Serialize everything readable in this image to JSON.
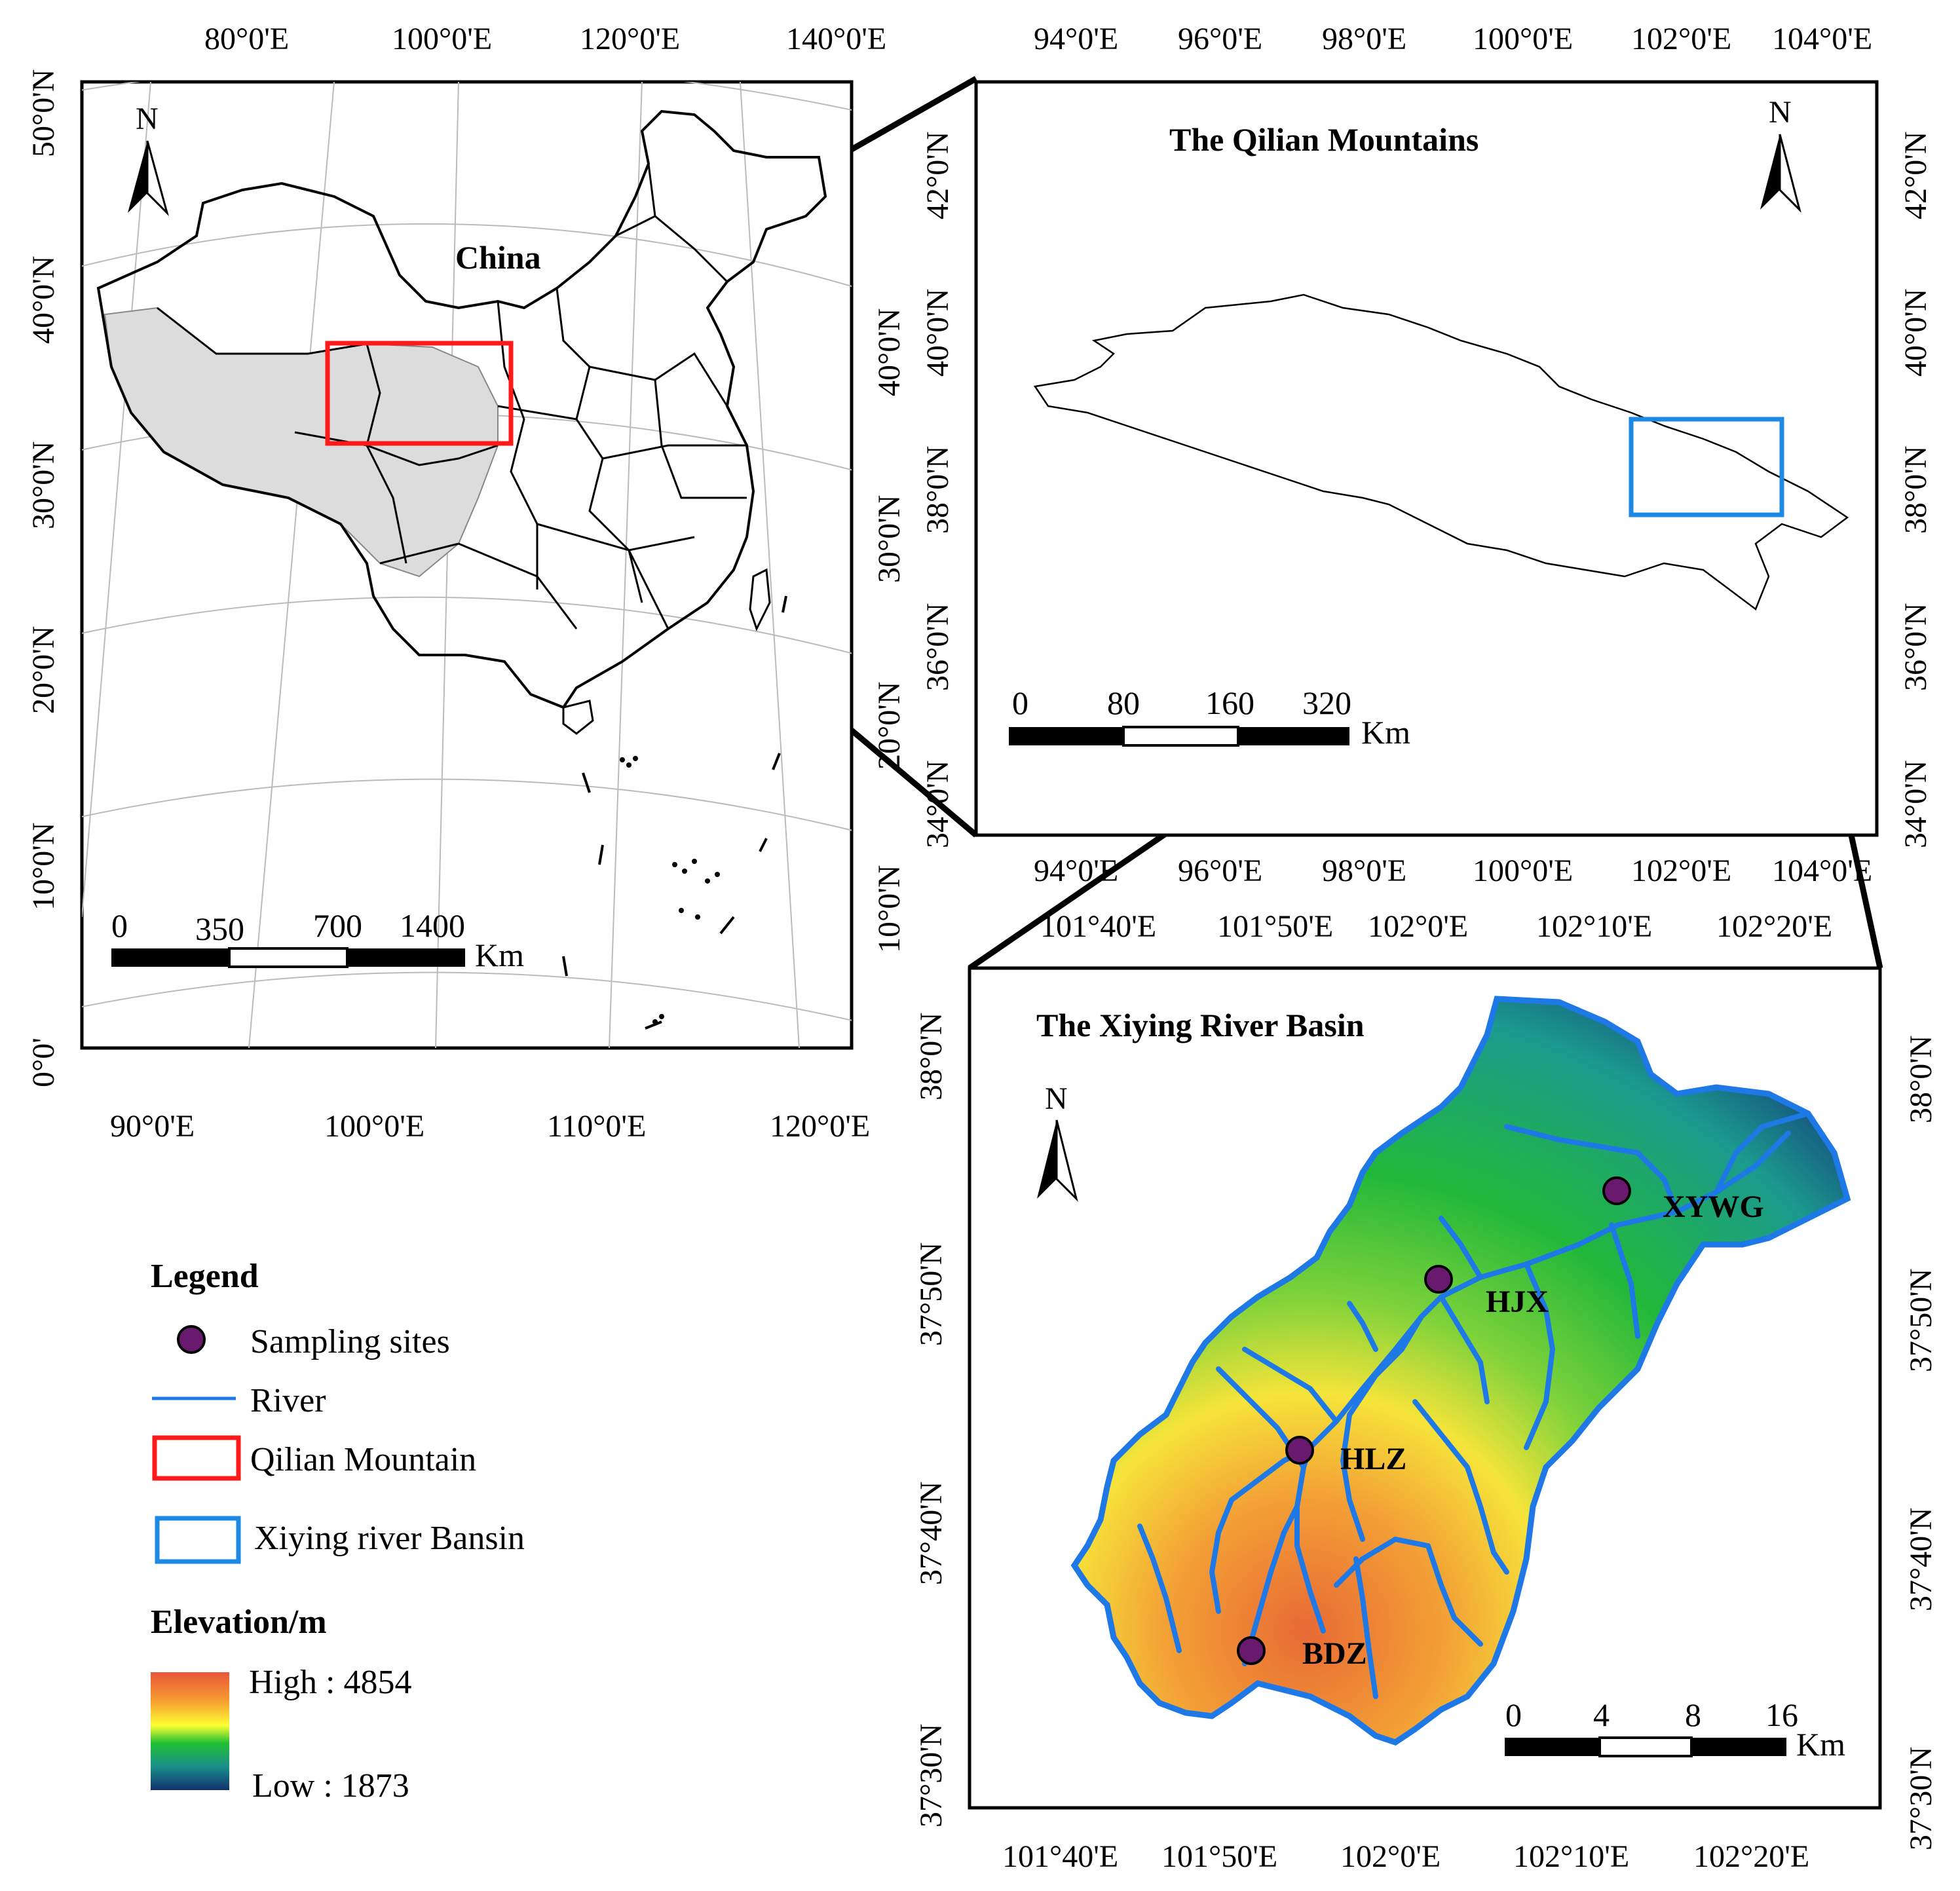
{
  "panel_china": {
    "top_ticks": [
      "80°0'E",
      "100°0'E",
      "120°0'E",
      "140°0'E"
    ],
    "bottom_ticks": [
      "90°0'E",
      "100°0'E",
      "110°0'E",
      "120°0'E"
    ],
    "left_ticks": [
      "50°0'N",
      "40°0'N",
      "30°0'N",
      "20°0'N",
      "10°0'N",
      "0°0'"
    ],
    "right_ticks": [
      "40°0'N",
      "30°0'N",
      "20°0'N",
      "10°0'N"
    ],
    "country_label": "China",
    "north": "N",
    "scale_labels": [
      "0",
      "350",
      "700",
      "1400"
    ],
    "scale_unit": "Km"
  },
  "panel_qilian": {
    "title": "The Qilian Mountains",
    "top_ticks": [
      "94°0'E",
      "96°0'E",
      "98°0'E",
      "100°0'E",
      "102°0'E",
      "104°0'E"
    ],
    "bottom_ticks": [
      "94°0'E",
      "96°0'E",
      "98°0'E",
      "100°0'E",
      "102°0'E",
      "104°0'E"
    ],
    "left_ticks": [
      "42°0'N",
      "40°0'N",
      "38°0'N",
      "36°0'N",
      "34°0'N"
    ],
    "right_ticks": [
      "42°0'N",
      "40°0'N",
      "38°0'N",
      "36°0'N",
      "34°0'N"
    ],
    "north": "N",
    "scale_labels": [
      "0",
      "80",
      "160",
      "320"
    ],
    "scale_unit": "Km"
  },
  "panel_xiying": {
    "title": "The Xiying River Basin",
    "top_ticks": [
      "101°40'E",
      "101°50'E",
      "102°0'E",
      "102°10'E",
      "102°20'E"
    ],
    "bottom_ticks": [
      "101°40'E",
      "101°50'E",
      "102°0'E",
      "102°10'E",
      "102°20'E"
    ],
    "left_ticks": [
      "38°0'N",
      "37°50'N",
      "37°40'N",
      "37°30'N"
    ],
    "right_ticks": [
      "38°0'N",
      "37°50'N",
      "37°40'N",
      "37°30'N"
    ],
    "north": "N",
    "sites": [
      "XYWG",
      "HJX",
      "HLZ",
      "BDZ"
    ],
    "scale_labels": [
      "0",
      "4",
      "8",
      "16"
    ],
    "scale_unit": "Km"
  },
  "legend": {
    "title": "Legend",
    "items": [
      "Sampling sites",
      "River",
      "Qilian Mountain",
      "Xiying river Bansin"
    ],
    "elevation_title": "Elevation/m",
    "high": "High : 4854",
    "low": "Low : 1873"
  },
  "colors": {
    "qilian_box": "#ff1a1a",
    "xiying_box": "#1e88e5",
    "river": "#1e78e6",
    "site": "#6a1a6e",
    "plateau_fill": "#dcdcdc",
    "elev_high": "#e8553a",
    "elev_mid_yellow": "#ffff33",
    "elev_mid_green": "#22c033",
    "elev_low": "#12306e"
  }
}
